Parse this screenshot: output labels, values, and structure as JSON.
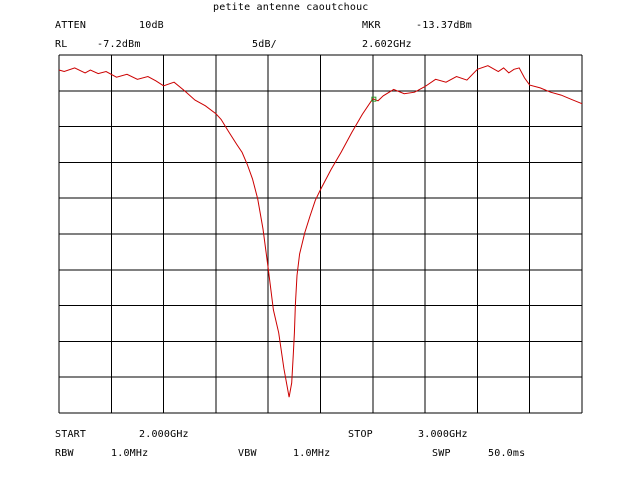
{
  "header": {
    "title": "petite antenne caoutchouc",
    "atten_label": "ATTEN",
    "atten_value": "10dB",
    "mkr_label": "MKR",
    "mkr_value": "-13.37dBm",
    "rl_label": "RL",
    "rl_value": "-7.2dBm",
    "scale_value": "5dB/",
    "mkr_freq": "2.602GHz"
  },
  "footer": {
    "start_label": "START",
    "start_value": "2.000GHz",
    "stop_label": "STOP",
    "stop_value": "3.000GHz",
    "rbw_label": "RBW",
    "rbw_value": "1.0MHz",
    "vbw_label": "VBW",
    "vbw_value": "1.0MHz",
    "swp_label": "SWP",
    "swp_value": "50.0ms"
  },
  "colors": {
    "trace": "#cc0000",
    "marker": "#2e9e2e",
    "grid": "#000000",
    "background": "#ffffff"
  },
  "chart_data": {
    "type": "line",
    "title": "petite antenne caoutchouc",
    "x_unit": "GHz",
    "y_unit": "dBm",
    "xlim": [
      2.0,
      3.0
    ],
    "ylim": [
      -57.2,
      -7.2
    ],
    "x_divisions": 10,
    "y_divisions": 10,
    "grid": true,
    "marker": {
      "x": 2.602,
      "y": -13.37
    },
    "series": [
      {
        "x": [
          2.0,
          2.01,
          2.03,
          2.05,
          2.06,
          2.075,
          2.09,
          2.11,
          2.13,
          2.15,
          2.17,
          2.185,
          2.2,
          2.22,
          2.24,
          2.26,
          2.28,
          2.3,
          2.31,
          2.325,
          2.34,
          2.35,
          2.36,
          2.37,
          2.38,
          2.39,
          2.4,
          2.41,
          2.42,
          2.43,
          2.44,
          2.445,
          2.448,
          2.45,
          2.452,
          2.455,
          2.46,
          2.47,
          2.48,
          2.49,
          2.5,
          2.52,
          2.54,
          2.56,
          2.58,
          2.6,
          2.61,
          2.62,
          2.64,
          2.66,
          2.68,
          2.7,
          2.72,
          2.74,
          2.76,
          2.78,
          2.8,
          2.82,
          2.84,
          2.85,
          2.86,
          2.87,
          2.88,
          2.89,
          2.9,
          2.92,
          2.94,
          2.96,
          2.98,
          3.0
        ],
        "y": [
          -9.3,
          -9.5,
          -9.0,
          -9.7,
          -9.3,
          -9.8,
          -9.5,
          -10.3,
          -9.9,
          -10.6,
          -10.2,
          -10.8,
          -11.5,
          -11.0,
          -12.2,
          -13.5,
          -14.3,
          -15.4,
          -16.2,
          -18.0,
          -19.7,
          -20.8,
          -22.5,
          -24.5,
          -27.3,
          -31.5,
          -37.0,
          -42.8,
          -46.0,
          -51.0,
          -55.0,
          -53.0,
          -49.0,
          -46.0,
          -42.0,
          -38.0,
          -35.0,
          -32.0,
          -29.7,
          -27.5,
          -26.0,
          -23.2,
          -20.7,
          -18.0,
          -15.5,
          -13.3,
          -13.6,
          -12.9,
          -12.0,
          -12.6,
          -12.4,
          -11.6,
          -10.6,
          -11.0,
          -10.2,
          -10.7,
          -9.2,
          -8.7,
          -9.5,
          -9.0,
          -9.7,
          -9.2,
          -9.0,
          -10.4,
          -11.4,
          -11.8,
          -12.4,
          -12.8,
          -13.4,
          -14.0
        ]
      }
    ]
  }
}
